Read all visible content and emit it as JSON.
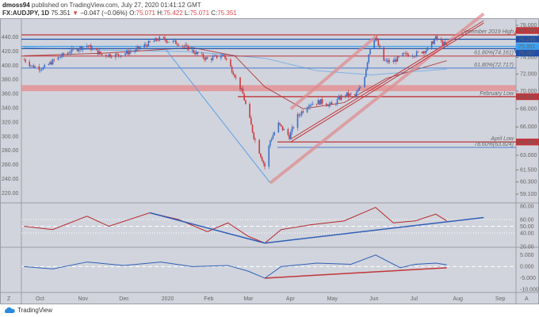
{
  "header": {
    "author": "dmoss94",
    "published": "published on TradingView.com, July 27, 2020 01:41:12 GMT",
    "symbol": "FX:AUDJPY, 1D",
    "last": "75.351",
    "arrow": "▼",
    "change": "−0.047 (−0.06%)",
    "o_label": "O:",
    "o": "75.071",
    "h_label": "H:",
    "h": "75.422",
    "l_label": "L:",
    "l": "75.071",
    "c_label": "C:",
    "c": "75.351"
  },
  "footer": {
    "brand": "TradingView"
  },
  "axis_corner_left": "Z",
  "axis_corner_right": "A",
  "colors": {
    "up": "#3b6fc9",
    "down": "#cc3a3f",
    "red_line": "#c0353a",
    "blue_line": "#4a7bd0",
    "bg": "#d1d4dc"
  },
  "chart_data": {
    "type": "line",
    "title": "FX:AUDJPY, 1D",
    "left_axis": {
      "ticks": [
        "440.00",
        "420.00",
        "400.00",
        "380.00",
        "360.00",
        "340.00",
        "320.00",
        "300.00",
        "280.00",
        "260.00",
        "240.00",
        "220.00"
      ]
    },
    "right_axis": {
      "ticks": [
        "78.000",
        "74.000",
        "72.000",
        "70.000",
        "68.000",
        "66.000",
        "63.000",
        "61.500",
        "60.300",
        "59.100"
      ],
      "scale": "log",
      "range": [
        59.1,
        78.0
      ]
    },
    "time_ticks": [
      [
        "Oct",
        "2019-10-01"
      ],
      [
        "Nov",
        "2019-11-01"
      ],
      [
        "Dec",
        "2019-12-01"
      ],
      [
        "2020",
        "2020-01-01"
      ],
      [
        "Feb",
        "2020-02-01"
      ],
      [
        "Mar",
        "2020-03-01"
      ],
      [
        "Apr",
        "2020-04-01"
      ],
      [
        "May",
        "2020-05-01"
      ],
      [
        "Jun",
        "2020-06-01"
      ],
      [
        "Jul",
        "2020-07-01"
      ],
      [
        "Aug",
        "2020-08-01"
      ],
      [
        "Sep",
        "2020-09-01"
      ]
    ],
    "price": [
      [
        "2019-09-19",
        73.75
      ],
      [
        "2019-09-25",
        72.93
      ],
      [
        "2019-10-03",
        72.68
      ],
      [
        "2019-10-12",
        73.75
      ],
      [
        "2019-10-23",
        74.78
      ],
      [
        "2019-11-04",
        75.46
      ],
      [
        "2019-11-15",
        74.3
      ],
      [
        "2019-11-27",
        74.3
      ],
      [
        "2019-12-08",
        74.78
      ],
      [
        "2019-12-19",
        75.7
      ],
      [
        "2019-12-28",
        76.39
      ],
      [
        "2020-01-03",
        75.99
      ],
      [
        "2020-01-11",
        75.7
      ],
      [
        "2020-01-20",
        74.78
      ],
      [
        "2020-01-31",
        73.75
      ],
      [
        "2020-02-12",
        74.3
      ],
      [
        "2020-02-20",
        71.9
      ],
      [
        "2020-02-26",
        69.64
      ],
      [
        "2020-03-05",
        64.98
      ],
      [
        "2020-03-13",
        61.86
      ],
      [
        "2020-03-17",
        64.57
      ],
      [
        "2020-03-23",
        66.28
      ],
      [
        "2020-03-31",
        64.98
      ],
      [
        "2020-04-06",
        67.15
      ],
      [
        "2020-04-14",
        68.54
      ],
      [
        "2020-04-23",
        68.81
      ],
      [
        "2020-05-01",
        68.37
      ],
      [
        "2020-05-10",
        69.64
      ],
      [
        "2020-05-18",
        69.45
      ],
      [
        "2020-05-24",
        71.0
      ],
      [
        "2020-05-30",
        76.19
      ],
      [
        "2020-06-02",
        76.39
      ],
      [
        "2020-06-08",
        73.6
      ],
      [
        "2020-06-14",
        73.4
      ],
      [
        "2020-06-22",
        74.3
      ],
      [
        "2020-07-01",
        74.4
      ],
      [
        "2020-07-10",
        74.99
      ],
      [
        "2020-07-16",
        76.39
      ],
      [
        "2020-07-24",
        75.35
      ]
    ],
    "ma_slow": [
      [
        "2019-09-19",
        75.2
      ],
      [
        "2019-11-15",
        74.9
      ],
      [
        "2020-01-20",
        74.7
      ],
      [
        "2020-03-13",
        73.9
      ],
      [
        "2020-04-20",
        72.4
      ],
      [
        "2020-05-30",
        71.9
      ],
      [
        "2020-07-24",
        72.6
      ]
    ],
    "ma_fast": [
      [
        "2019-09-19",
        74.2
      ],
      [
        "2019-11-15",
        74.5
      ],
      [
        "2020-01-20",
        75.2
      ],
      [
        "2020-02-20",
        74.2
      ],
      [
        "2020-03-13",
        70.5
      ],
      [
        "2020-04-10",
        68.0
      ],
      [
        "2020-05-10",
        68.7
      ],
      [
        "2020-06-10",
        71.5
      ],
      [
        "2020-07-24",
        73.6
      ]
    ],
    "levels": [
      {
        "price": 76.788,
        "label": "December 2019 High",
        "tag": "76.788",
        "color": "#c0353a"
      },
      {
        "price": 76.245,
        "label": "",
        "tag": "76.245",
        "color": "#1f4fa8"
      },
      {
        "price": 75.351,
        "label": "",
        "tag": "75.351",
        "color": "#3aa0f0"
      },
      {
        "price": 75.087,
        "label": "",
        "tag": "75.087",
        "color": "#1f4fa8"
      },
      {
        "price": 74.161,
        "label": "61.80%(74.161)",
        "tag": "",
        "color": "#c0353a"
      },
      {
        "price": 72.717,
        "label": "61.80%(72.717)",
        "tag": "",
        "color": "#4a7bd0"
      },
      {
        "price": 69.374,
        "label": "February Low",
        "tag": "69.374",
        "color": "#c0353a"
      },
      {
        "price": 64.394,
        "label": "April Low",
        "tag": "64.394",
        "color": "#c0353a"
      },
      {
        "price": 63.824,
        "label": "78.60%(63.824)",
        "tag": "",
        "color": "#4a7bd0"
      }
    ],
    "zones": [
      {
        "from": 70.0,
        "to": 70.7
      }
    ],
    "trendlines": [
      {
        "from": [
          "2020-01-01",
          74.9
        ],
        "to": [
          "2020-03-17",
          60.2
        ],
        "color": "#5aa0e8"
      },
      {
        "from": [
          "2020-03-17",
          60.2
        ],
        "to": [
          "2020-08-20",
          79.5
        ],
        "color": "#e08a8c",
        "w": 4
      },
      {
        "from": [
          "2020-04-01",
          68.0
        ],
        "to": [
          "2020-06-03",
          76.7
        ],
        "color": "#e08a8c",
        "w": 4
      },
      {
        "from": [
          "2020-04-01",
          64.4
        ],
        "to": [
          "2020-08-20",
          78.3
        ],
        "color": "#c0353a"
      },
      {
        "from": [
          "2020-04-01",
          64.7
        ],
        "to": [
          "2020-08-20",
          78.6
        ],
        "color": "#c0353a"
      }
    ],
    "rsi": {
      "ticks": [
        "80.00",
        "60.00",
        "50.00",
        "40.00",
        "20.00"
      ],
      "range": [
        15,
        85
      ],
      "values": [
        [
          "2019-09-19",
          50
        ],
        [
          "2019-10-10",
          45
        ],
        [
          "2019-11-04",
          65
        ],
        [
          "2019-11-20",
          50
        ],
        [
          "2019-12-20",
          70
        ],
        [
          "2020-01-10",
          60
        ],
        [
          "2020-01-31",
          42
        ],
        [
          "2020-02-15",
          55
        ],
        [
          "2020-03-01",
          35
        ],
        [
          "2020-03-13",
          25
        ],
        [
          "2020-03-25",
          45
        ],
        [
          "2020-04-15",
          52
        ],
        [
          "2020-05-10",
          58
        ],
        [
          "2020-06-02",
          78
        ],
        [
          "2020-06-15",
          55
        ],
        [
          "2020-07-01",
          58
        ],
        [
          "2020-07-16",
          68
        ],
        [
          "2020-07-24",
          58
        ]
      ],
      "trendlines": [
        {
          "from": [
            "2019-12-20",
            70
          ],
          "to": [
            "2020-03-13",
            25
          ]
        },
        {
          "from": [
            "2020-03-13",
            25
          ],
          "to": [
            "2020-08-20",
            63
          ]
        }
      ]
    },
    "osc": {
      "ticks": [
        "5.000",
        "0.000",
        "-5.000",
        "-10.000"
      ],
      "range": [
        -10.5,
        7
      ],
      "values": [
        [
          "2019-09-19",
          0
        ],
        [
          "2019-10-10",
          -1
        ],
        [
          "2019-11-04",
          2
        ],
        [
          "2019-12-01",
          0.5
        ],
        [
          "2019-12-28",
          2
        ],
        [
          "2020-01-20",
          0
        ],
        [
          "2020-02-15",
          0.5
        ],
        [
          "2020-03-01",
          -2
        ],
        [
          "2020-03-13",
          -5
        ],
        [
          "2020-03-25",
          0
        ],
        [
          "2020-04-20",
          1.5
        ],
        [
          "2020-05-15",
          1
        ],
        [
          "2020-06-02",
          5
        ],
        [
          "2020-06-20",
          -0.5
        ],
        [
          "2020-07-01",
          1
        ],
        [
          "2020-07-16",
          1.5
        ],
        [
          "2020-07-24",
          0.8
        ]
      ],
      "trendlines": [
        {
          "from": [
            "2020-03-13",
            -5
          ],
          "to": [
            "2020-07-24",
            -0.5
          ]
        }
      ]
    }
  }
}
